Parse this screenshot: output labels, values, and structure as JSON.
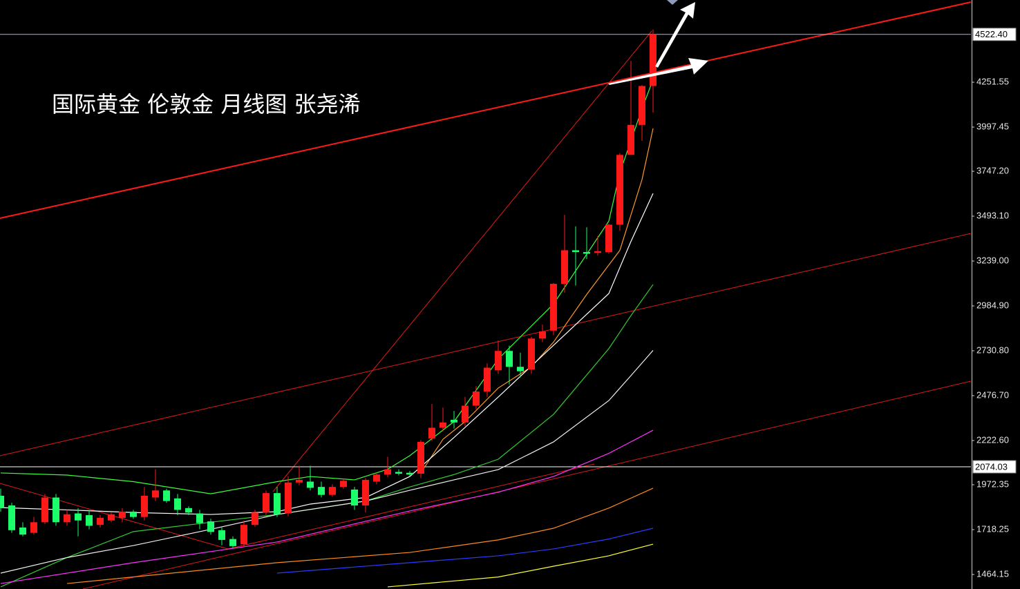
{
  "chart_data": {
    "type": "candlestick",
    "title": "国际黄金 伦敦金 月线图 张尧浠",
    "up_color": "#ff1a1a",
    "down_color": "#1aff6a",
    "ylim": [
      1382,
      4717
    ],
    "yticks": [
      4251.55,
      3997.45,
      {
        "value": 3747.2,
        "label": "3747.20"
      },
      {
        "value": 3493.1,
        "label": "3493.10"
      },
      {
        "value": 3239,
        "label": "3239.00"
      },
      {
        "value": 2984.9,
        "label": "2984.90"
      },
      {
        "value": 2730.8,
        "label": "2730.80"
      },
      {
        "value": 2476.7,
        "label": "2476.70"
      },
      {
        "value": 2222.6,
        "label": "2222.60"
      },
      1972.35,
      1718.25,
      1464.15
    ],
    "price_markers": [
      {
        "value": 4522.4,
        "label": "4522.40",
        "color": "#aab4d4"
      },
      {
        "value": 2074.03,
        "label": "2074.03",
        "color": "#ffffff"
      }
    ],
    "candles": {
      "open": [
        1910,
        1855,
        1730,
        1700,
        1760,
        1900,
        1760,
        1810,
        1800,
        1745,
        1770,
        1785,
        1820,
        1790,
        1900,
        1940,
        1895,
        1840,
        1810,
        1765,
        1715,
        1665,
        1635,
        1745,
        1815,
        1925,
        1810,
        1985,
        1990,
        1960,
        1915,
        1960,
        1945,
        1855,
        1990,
        2030,
        2045,
        2040,
        2035,
        2235,
        2295,
        2340,
        2325,
        2420,
        2500,
        2620,
        2730,
        2640,
        2625,
        2800,
        2845,
        3110,
        3300,
        3290,
        3285,
        3290,
        3445,
        3840,
        4010,
        4230
      ],
      "high": [
        1950,
        1870,
        1760,
        1790,
        1920,
        1920,
        1830,
        1840,
        1830,
        1800,
        1815,
        1840,
        1830,
        1960,
        2060,
        1950,
        1920,
        1850,
        1830,
        1780,
        1730,
        1680,
        1770,
        1830,
        1940,
        1960,
        2020,
        2080,
        2080,
        1990,
        1975,
        2005,
        1960,
        2010,
        2040,
        2130,
        2060,
        2050,
        2225,
        2430,
        2410,
        2390,
        2470,
        2530,
        2660,
        2790,
        2760,
        2720,
        2810,
        2880,
        3115,
        3500,
        3435,
        3430,
        3380,
        3450,
        3850,
        4372,
        4235,
        4550
      ],
      "low": [
        1820,
        1700,
        1680,
        1690,
        1750,
        1740,
        1740,
        1680,
        1720,
        1730,
        1760,
        1760,
        1780,
        1770,
        1880,
        1870,
        1800,
        1800,
        1720,
        1690,
        1630,
        1615,
        1620,
        1735,
        1800,
        1790,
        1795,
        1970,
        1940,
        1900,
        1905,
        1950,
        1830,
        1815,
        1975,
        2015,
        2025,
        2020,
        2010,
        2220,
        2275,
        2290,
        2305,
        2400,
        2470,
        2600,
        2540,
        2580,
        2600,
        2780,
        2820,
        3060,
        3100,
        3250,
        3270,
        3280,
        3410,
        3840,
        3920,
        4080
      ],
      "close": [
        1840,
        1715,
        1690,
        1760,
        1900,
        1760,
        1805,
        1770,
        1740,
        1785,
        1805,
        1820,
        1790,
        1910,
        1940,
        1880,
        1830,
        1815,
        1755,
        1705,
        1660,
        1625,
        1745,
        1815,
        1925,
        1805,
        1985,
        2000,
        1955,
        1915,
        1960,
        1995,
        1855,
        2000,
        2030,
        2060,
        2035,
        2030,
        2215,
        2295,
        2325,
        2325,
        2420,
        2500,
        2635,
        2730,
        2640,
        2615,
        2800,
        2840,
        3110,
        3300,
        3290,
        3280,
        3295,
        3445,
        3840,
        4010,
        4230,
        4522.4
      ]
    },
    "moving_averages": [
      {
        "color": "#ff9a2a",
        "x": [
          38,
          40,
          42,
          45,
          48,
          50,
          53,
          56,
          58,
          59
        ],
        "values": [
          2040,
          2230,
          2330,
          2520,
          2640,
          2780,
          3050,
          3300,
          3700,
          3990
        ]
      },
      {
        "color": "#3cff3c",
        "x": [
          0,
          6,
          12,
          19,
          25,
          28,
          32,
          35,
          37,
          41,
          45,
          50,
          55,
          56,
          58,
          59
        ],
        "values": [
          2039,
          2027,
          1990,
          1921,
          1990,
          2019,
          2000,
          2060,
          2137,
          2330,
          2684,
          2996,
          3465,
          3740,
          4100,
          4267
        ]
      },
      {
        "color": "#ffffff",
        "x": [
          0,
          6,
          12,
          19,
          25,
          28,
          33,
          37,
          41,
          45,
          50,
          55,
          57,
          59
        ],
        "values": [
          1843,
          1830,
          1815,
          1804,
          1820,
          1863,
          1900,
          2019,
          2240,
          2469,
          2762,
          3055,
          3350,
          3622
        ]
      },
      {
        "color": "#33cc33",
        "x": [
          0,
          6,
          12,
          19,
          25,
          33,
          37,
          41,
          45,
          50,
          55,
          57,
          59
        ],
        "values": [
          1394,
          1560,
          1707,
          1760,
          1804,
          1880,
          1960,
          2030,
          2117,
          2371,
          2743,
          2930,
          3106
        ]
      },
      {
        "color": "#f0f0f0",
        "x": [
          0,
          6,
          12,
          19,
          25,
          33,
          37,
          41,
          45,
          50,
          55,
          57,
          59
        ],
        "values": [
          1472,
          1560,
          1628,
          1720,
          1804,
          1880,
          1941,
          2000,
          2058,
          2215,
          2449,
          2590,
          2733
        ]
      },
      {
        "color": "#ff33ff",
        "x": [
          0,
          12,
          25,
          37,
          45,
          50,
          55,
          59
        ],
        "values": [
          1413,
          1531,
          1648,
          1824,
          1930,
          2019,
          2150,
          2281
        ]
      },
      {
        "color": "#ff8c1a",
        "x": [
          6,
          25,
          37,
          45,
          50,
          55,
          59
        ],
        "values": [
          1413,
          1531,
          1589,
          1660,
          1726,
          1840,
          1953
        ]
      },
      {
        "color": "#2a3cff",
        "x": [
          25,
          37,
          45,
          50,
          55,
          59
        ],
        "values": [
          1472,
          1531,
          1570,
          1609,
          1665,
          1726
        ]
      },
      {
        "color": "#ffff33",
        "x": [
          35,
          45,
          50,
          55,
          59
        ],
        "values": [
          1394,
          1450,
          1511,
          1570,
          1636
        ]
      }
    ]
  }
}
